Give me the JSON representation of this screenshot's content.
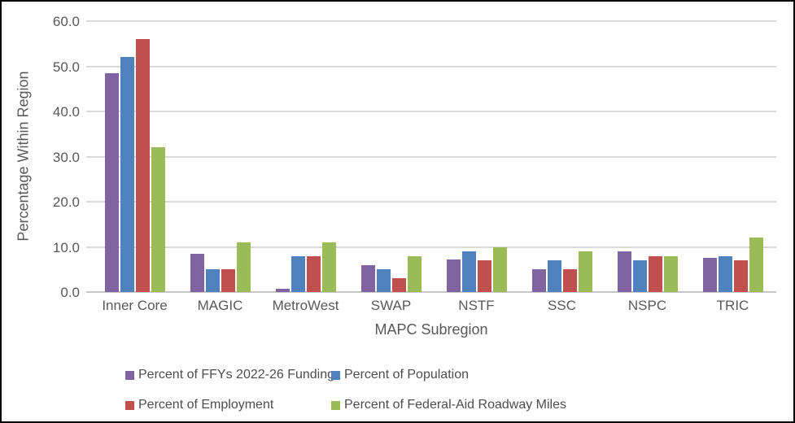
{
  "frame": {
    "background": "#ffffff",
    "border_color": "#000000",
    "gridline_color": "#d9d9d9"
  },
  "chart_data": {
    "type": "bar",
    "title": "",
    "xlabel": "MAPC Subregion",
    "ylabel": "Percentage Within Region",
    "ylim": [
      0,
      60
    ],
    "ytick_step": 10,
    "ytick_labels": [
      "0.0",
      "10.0",
      "20.0",
      "30.0",
      "40.0",
      "50.0",
      "60.0"
    ],
    "grid": true,
    "legend_position": "bottom-two-columns",
    "categories": [
      "Inner Core",
      "MAGIC",
      "MetroWest",
      "SWAP",
      "NSTF",
      "SSC",
      "NSPC",
      "TRIC"
    ],
    "series": [
      {
        "name": "Percent of FFYs 2022-26 Funding",
        "color": "#8064A2",
        "values": [
          48.5,
          8.5,
          0.7,
          6.0,
          7.2,
          5.0,
          9.0,
          7.5
        ]
      },
      {
        "name": "Percent of Population",
        "color": "#4F81BD",
        "values": [
          52.0,
          5.0,
          8.0,
          5.0,
          9.0,
          7.0,
          7.0,
          8.0
        ]
      },
      {
        "name": "Percent of Employment",
        "color": "#C0504D",
        "values": [
          56.0,
          5.0,
          8.0,
          3.0,
          7.0,
          5.0,
          8.0,
          7.0
        ]
      },
      {
        "name": "Percent of Federal-Aid Roadway Miles",
        "color": "#9BBB59",
        "values": [
          32.0,
          11.0,
          11.0,
          8.0,
          10.0,
          9.0,
          8.0,
          12.0
        ]
      }
    ]
  }
}
